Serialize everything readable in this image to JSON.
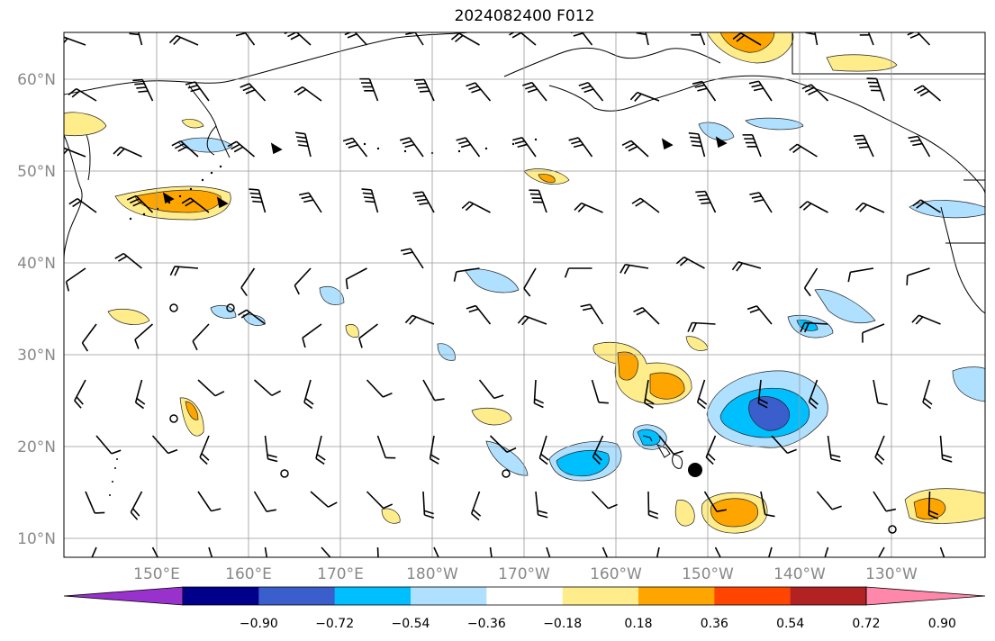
{
  "title": "2024082400 F012",
  "map": {
    "lat_labels": [
      "10°N",
      "20°N",
      "30°N",
      "40°N",
      "50°N",
      "60°N"
    ],
    "lon_labels": [
      "150°E",
      "160°E",
      "170°E",
      "180°W",
      "170°W",
      "160°W",
      "150°W",
      "140°W",
      "130°W"
    ],
    "grid": true
  },
  "colorbar": {
    "ticks": [
      "−0.90",
      "−0.72",
      "−0.54",
      "−0.36",
      "−0.18",
      "0.18",
      "0.36",
      "0.54",
      "0.72",
      "0.90"
    ],
    "colors": [
      "#9932CC",
      "#00008B",
      "#3A5FCD",
      "#00BFFF",
      "#B0E0FF",
      "#FFFFFF",
      "#FFEC8B",
      "#FFA500",
      "#FF4500",
      "#B22222",
      "#FF88AA"
    ],
    "extend": "both"
  }
}
